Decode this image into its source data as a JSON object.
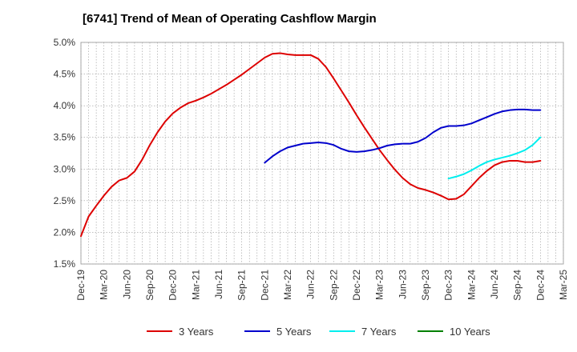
{
  "chart_data": {
    "type": "line",
    "title": "[6741]  Trend of Mean of Operating Cashflow Margin",
    "xlabel": "",
    "ylabel": "",
    "x_ticks": [
      "Dec-19",
      "Mar-20",
      "Jun-20",
      "Sep-20",
      "Dec-20",
      "Mar-21",
      "Jun-21",
      "Sep-21",
      "Dec-21",
      "Mar-22",
      "Jun-22",
      "Sep-22",
      "Dec-22",
      "Mar-23",
      "Jun-23",
      "Sep-23",
      "Dec-23",
      "Mar-24",
      "Jun-24",
      "Sep-24",
      "Dec-24",
      "Mar-25"
    ],
    "y_ticks": [
      "1.5%",
      "2.0%",
      "2.5%",
      "3.0%",
      "3.5%",
      "4.0%",
      "4.5%",
      "5.0%"
    ],
    "ylim": [
      1.5,
      5.0
    ],
    "grid": true,
    "legend_position": "bottom",
    "series": [
      {
        "name": "3 Years",
        "color": "#dd0000",
        "x": [
          "Dec-19",
          "Jan-20",
          "Feb-20",
          "Mar-20",
          "Apr-20",
          "May-20",
          "Jun-20",
          "Jul-20",
          "Aug-20",
          "Sep-20",
          "Oct-20",
          "Nov-20",
          "Dec-20",
          "Jan-21",
          "Feb-21",
          "Mar-21",
          "Apr-21",
          "May-21",
          "Jun-21",
          "Jul-21",
          "Aug-21",
          "Sep-21",
          "Oct-21",
          "Nov-21",
          "Dec-21",
          "Jan-22",
          "Feb-22",
          "Mar-22",
          "Apr-22",
          "May-22",
          "Jun-22",
          "Jul-22",
          "Aug-22",
          "Sep-22",
          "Oct-22",
          "Nov-22",
          "Dec-22",
          "Jan-23",
          "Feb-23",
          "Mar-23",
          "Apr-23",
          "May-23",
          "Jun-23",
          "Jul-23",
          "Aug-23",
          "Sep-23",
          "Oct-23",
          "Nov-23",
          "Dec-23",
          "Jan-24",
          "Feb-24",
          "Mar-24",
          "Apr-24",
          "May-24",
          "Jun-24",
          "Jul-24",
          "Aug-24",
          "Sep-24",
          "Oct-24",
          "Nov-24",
          "Dec-24"
        ],
        "values": [
          1.94,
          2.25,
          2.42,
          2.58,
          2.72,
          2.82,
          2.86,
          2.96,
          3.15,
          3.38,
          3.58,
          3.75,
          3.88,
          3.97,
          4.04,
          4.08,
          4.13,
          4.19,
          4.26,
          4.33,
          4.41,
          4.49,
          4.58,
          4.67,
          4.76,
          4.82,
          4.83,
          4.81,
          4.8,
          4.8,
          4.8,
          4.74,
          4.61,
          4.43,
          4.24,
          4.05,
          3.85,
          3.66,
          3.48,
          3.3,
          3.14,
          2.99,
          2.86,
          2.76,
          2.7,
          2.67,
          2.63,
          2.58,
          2.52,
          2.53,
          2.6,
          2.73,
          2.86,
          2.97,
          3.06,
          3.11,
          3.13,
          3.13,
          3.11,
          3.11,
          3.13
        ]
      },
      {
        "name": "5 Years",
        "color": "#0000cc",
        "x": [
          "Dec-21",
          "Jan-22",
          "Feb-22",
          "Mar-22",
          "Apr-22",
          "May-22",
          "Jun-22",
          "Jul-22",
          "Aug-22",
          "Sep-22",
          "Oct-22",
          "Nov-22",
          "Dec-22",
          "Jan-23",
          "Feb-23",
          "Mar-23",
          "Apr-23",
          "May-23",
          "Jun-23",
          "Jul-23",
          "Aug-23",
          "Sep-23",
          "Oct-23",
          "Nov-23",
          "Dec-23",
          "Jan-24",
          "Feb-24",
          "Mar-24",
          "Apr-24",
          "May-24",
          "Jun-24",
          "Jul-24",
          "Aug-24",
          "Sep-24",
          "Oct-24",
          "Nov-24",
          "Dec-24"
        ],
        "values": [
          3.1,
          3.2,
          3.28,
          3.34,
          3.37,
          3.4,
          3.41,
          3.42,
          3.41,
          3.38,
          3.32,
          3.28,
          3.27,
          3.28,
          3.3,
          3.33,
          3.37,
          3.39,
          3.4,
          3.4,
          3.43,
          3.49,
          3.58,
          3.65,
          3.68,
          3.68,
          3.69,
          3.72,
          3.77,
          3.82,
          3.87,
          3.91,
          3.93,
          3.94,
          3.94,
          3.93,
          3.93
        ]
      },
      {
        "name": "7 Years",
        "color": "#00eeee",
        "x": [
          "Dec-23",
          "Jan-24",
          "Feb-24",
          "Mar-24",
          "Apr-24",
          "May-24",
          "Jun-24",
          "Jul-24",
          "Aug-24",
          "Sep-24",
          "Oct-24",
          "Nov-24",
          "Dec-24"
        ],
        "values": [
          2.85,
          2.88,
          2.92,
          2.98,
          3.05,
          3.11,
          3.15,
          3.18,
          3.21,
          3.25,
          3.3,
          3.38,
          3.5
        ]
      },
      {
        "name": "10 Years",
        "color": "#008000",
        "x": [],
        "values": []
      }
    ]
  }
}
